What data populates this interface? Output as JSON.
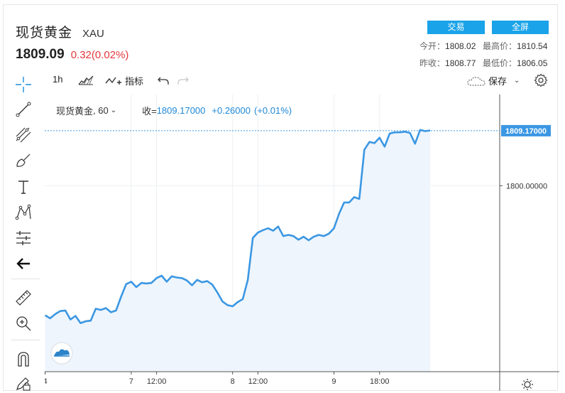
{
  "header": {
    "title": "现货黄金",
    "symbol": "XAU",
    "last_price": "1809.09",
    "change": "0.32",
    "change_pct": "(0.02%)"
  },
  "buttons": {
    "trade": "交易",
    "fullscreen": "全屏"
  },
  "stats": {
    "open_label": "今开：",
    "open_value": "1808.02",
    "high_label": "最高价：",
    "high_value": "1810.54",
    "prev_close_label": "昨收：",
    "prev_close_value": "1808.77",
    "low_label": "最低价：",
    "low_value": "1806.05"
  },
  "toolbar": {
    "interval": "1h",
    "indicators_label": "指标",
    "save_label": "保存"
  },
  "sidebar_icons": [
    "crosshair-icon",
    "trend-line-icon",
    "fib-icon",
    "brush-icon",
    "text-icon",
    "pattern-icon",
    "measure-icon",
    "back-arrow-icon",
    "ruler-icon",
    "zoom-in-icon",
    "magnet-icon",
    "lock-pencil-icon"
  ],
  "legend": {
    "symbol": "现货黄金",
    "interval": "60",
    "close_label": "收=",
    "close_value": "1809.17000",
    "change": "+0.26000",
    "change_pct": "(+0.01%)"
  },
  "chart_data": {
    "type": "area",
    "title": "",
    "xlabel": "",
    "ylabel": "",
    "x_ticks": [
      {
        "label": "4",
        "t": 0
      },
      {
        "label": "7",
        "t": 17
      },
      {
        "label": "12:00",
        "t": 22
      },
      {
        "label": "8",
        "t": 37
      },
      {
        "label": "12:00",
        "t": 42
      },
      {
        "label": "9",
        "t": 57
      },
      {
        "label": "18:00",
        "t": 66
      }
    ],
    "y_ticks": [
      1800.0
    ],
    "y_tick_labels": [
      "1800.00000"
    ],
    "ylim": [
      1769.0,
      1815.2
    ],
    "current_price": 1809.17,
    "current_price_label": "1809.17000",
    "grid": true,
    "colors": {
      "line": "#3b97e3",
      "fill": "#eef5fc",
      "price_line": "#3b97e3"
    },
    "series": [
      {
        "values": [
          1778.4,
          1777.9,
          1778.6,
          1779.1,
          1779.2,
          1777.7,
          1778.3,
          1777.1,
          1777.4,
          1777.5,
          1779.5,
          1779.3,
          1779.6,
          1778.9,
          1779.2,
          1781.5,
          1783.6,
          1784.0,
          1783.1,
          1783.8,
          1783.7,
          1783.8,
          1784.6,
          1785.0,
          1784.0,
          1784.9,
          1784.7,
          1784.6,
          1784.2,
          1783.4,
          1784.3,
          1783.9,
          1784.1,
          1783.5,
          1782.2,
          1780.7,
          1780.1,
          1779.9,
          1780.6,
          1781.1,
          1784.3,
          1791.3,
          1792.2,
          1792.6,
          1792.9,
          1792.5,
          1793.2,
          1791.6,
          1791.8,
          1791.6,
          1791.0,
          1791.5,
          1790.9,
          1791.5,
          1791.8,
          1791.6,
          1792.0,
          1792.9,
          1795.3,
          1797.2,
          1797.2,
          1798.1,
          1797.8,
          1806.0,
          1807.3,
          1807.1,
          1808.0,
          1806.5,
          1808.7,
          1808.9,
          1808.9,
          1809.0,
          1808.8,
          1807.0,
          1809.3,
          1809.1,
          1809.2
        ]
      }
    ]
  }
}
